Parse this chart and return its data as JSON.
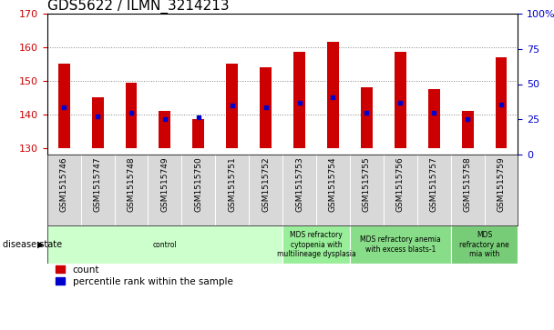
{
  "title": "GDS5622 / ILMN_3214213",
  "samples": [
    "GSM1515746",
    "GSM1515747",
    "GSM1515748",
    "GSM1515749",
    "GSM1515750",
    "GSM1515751",
    "GSM1515752",
    "GSM1515753",
    "GSM1515754",
    "GSM1515755",
    "GSM1515756",
    "GSM1515757",
    "GSM1515758",
    "GSM1515759"
  ],
  "count_values": [
    155.0,
    145.0,
    149.5,
    141.0,
    138.5,
    155.0,
    154.0,
    158.5,
    161.5,
    148.0,
    158.5,
    147.5,
    141.0,
    157.0
  ],
  "percentile_values": [
    142.0,
    139.5,
    140.5,
    138.5,
    139.0,
    142.5,
    142.0,
    143.5,
    145.0,
    140.5,
    143.5,
    140.5,
    138.5,
    143.0
  ],
  "ylim_left": [
    128,
    170
  ],
  "ylim_right": [
    0,
    100
  ],
  "yticks_left": [
    130,
    140,
    150,
    160,
    170
  ],
  "yticks_right": [
    0,
    25,
    50,
    75,
    100
  ],
  "bar_color": "#cc0000",
  "dot_color": "#0000cc",
  "bar_bottom": 130,
  "disease_groups": [
    {
      "label": "control",
      "start": 0,
      "end": 7,
      "color": "#ccffcc"
    },
    {
      "label": "MDS refractory\ncytopenia with\nmultilineage dysplasia",
      "start": 7,
      "end": 9,
      "color": "#99ee99"
    },
    {
      "label": "MDS refractory anemia\nwith excess blasts-1",
      "start": 9,
      "end": 12,
      "color": "#88dd88"
    },
    {
      "label": "MDS\nrefractory ane\nmia with",
      "start": 12,
      "end": 14,
      "color": "#77cc77"
    }
  ],
  "disease_state_label": "disease state",
  "legend_count_label": "count",
  "legend_percentile_label": "percentile rank within the sample",
  "grid_yticks": [
    140,
    150,
    160,
    170
  ],
  "title_fontsize": 11,
  "tick_fontsize": 8,
  "label_fontsize": 8,
  "bar_width": 0.35
}
